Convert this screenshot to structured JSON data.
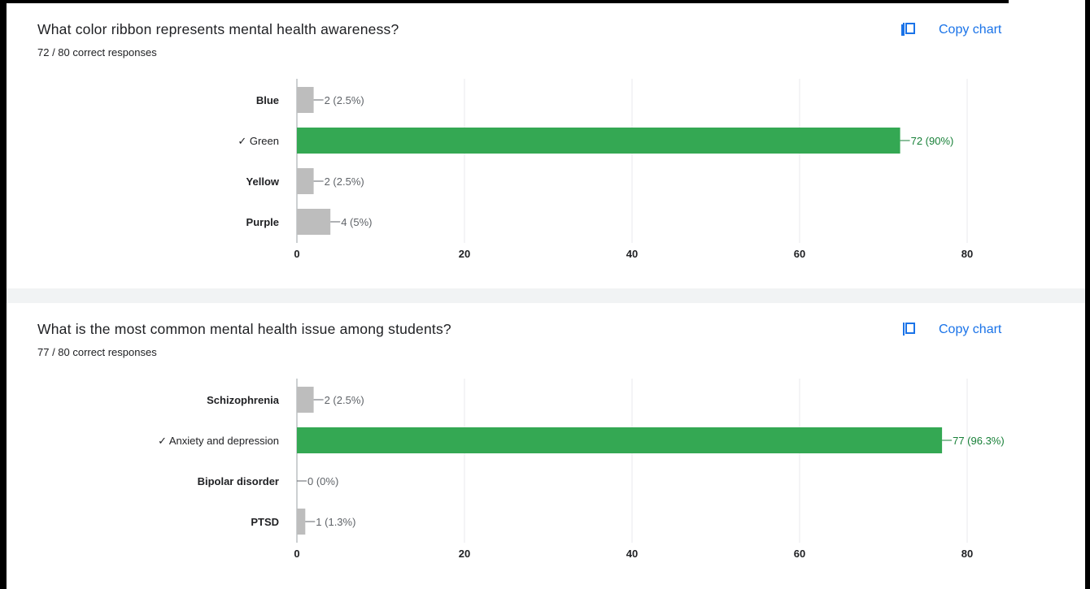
{
  "colors": {
    "accent": "#1a73e8",
    "correct_bar": "#34a853",
    "correct_label": "#188038",
    "incorrect_bar": "#bdbdbd",
    "incorrect_label": "#5f6368",
    "grid": "#e8eaed"
  },
  "icons": {
    "copy": "copy-icon"
  },
  "questions": [
    {
      "title": "What color ribbon represents mental health awareness?",
      "subtitle": "72 / 80 correct responses",
      "copy_label": "Copy chart"
    },
    {
      "title": "What is the most common mental health issue among students?",
      "subtitle": "77 / 80 correct responses",
      "copy_label": "Copy chart"
    }
  ],
  "chart_data": [
    {
      "type": "bar",
      "orientation": "horizontal",
      "categories": [
        "Blue",
        "Green",
        "Yellow",
        "Purple"
      ],
      "category_labels": [
        "Blue",
        "✓ Green",
        "Yellow",
        "Purple"
      ],
      "values": [
        2,
        72,
        2,
        4
      ],
      "data_labels": [
        "2 (2.5%)",
        "72 (90%)",
        "2 (2.5%)",
        "4 (5%)"
      ],
      "correct": [
        false,
        true,
        false,
        false
      ],
      "xlim": [
        0,
        80
      ],
      "xticks": [
        0,
        20,
        40,
        60,
        80
      ],
      "grid": true
    },
    {
      "type": "bar",
      "orientation": "horizontal",
      "categories": [
        "Schizophrenia",
        "Anxiety and depression",
        "Bipolar disorder",
        "PTSD"
      ],
      "category_labels": [
        "Schizophrenia",
        "✓ Anxiety and depression",
        "Bipolar disorder",
        "PTSD"
      ],
      "values": [
        2,
        77,
        0,
        1
      ],
      "data_labels": [
        "2 (2.5%)",
        "77 (96.3%)",
        "0 (0%)",
        "1 (1.3%)"
      ],
      "correct": [
        false,
        true,
        false,
        false
      ],
      "xlim": [
        0,
        80
      ],
      "xticks": [
        0,
        20,
        40,
        60,
        80
      ],
      "grid": true
    }
  ]
}
